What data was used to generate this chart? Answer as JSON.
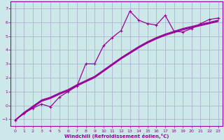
{
  "background_color": "#cce8e8",
  "grid_color": "#aaaacc",
  "line_color": "#990099",
  "xlabel": "Windchill (Refroidissement éolien,°C)",
  "xlim": [
    -0.5,
    23.5
  ],
  "ylim": [
    -1.5,
    7.5
  ],
  "yticks": [
    -1,
    0,
    1,
    2,
    3,
    4,
    5,
    6,
    7
  ],
  "xticks": [
    0,
    1,
    2,
    3,
    4,
    5,
    6,
    7,
    8,
    9,
    10,
    11,
    12,
    13,
    14,
    15,
    16,
    17,
    18,
    19,
    20,
    21,
    22,
    23
  ],
  "data_line": {
    "x": [
      0,
      1,
      2,
      3,
      4,
      5,
      6,
      7,
      8,
      9,
      10,
      11,
      12,
      13,
      14,
      15,
      16,
      17,
      18,
      19,
      20,
      21,
      22,
      23
    ],
    "y": [
      -1.1,
      -0.55,
      -0.2,
      0.1,
      -0.1,
      0.6,
      1.0,
      1.4,
      3.0,
      3.0,
      4.3,
      4.9,
      5.4,
      6.8,
      6.15,
      5.9,
      5.8,
      6.5,
      5.35,
      5.3,
      5.55,
      5.9,
      6.2,
      6.3
    ]
  },
  "smooth_lines": [
    [
      -1.05,
      -0.55,
      -0.1,
      0.35,
      0.55,
      0.85,
      1.1,
      1.45,
      1.75,
      2.05,
      2.5,
      2.95,
      3.4,
      3.8,
      4.2,
      4.55,
      4.85,
      5.1,
      5.3,
      5.5,
      5.65,
      5.8,
      5.95,
      6.1
    ],
    [
      -1.05,
      -0.6,
      -0.15,
      0.3,
      0.5,
      0.8,
      1.05,
      1.4,
      1.7,
      2.0,
      2.45,
      2.9,
      3.35,
      3.75,
      4.15,
      4.5,
      4.8,
      5.05,
      5.25,
      5.45,
      5.6,
      5.75,
      5.9,
      6.05
    ],
    [
      -1.05,
      -0.5,
      -0.05,
      0.4,
      0.6,
      0.9,
      1.15,
      1.5,
      1.8,
      2.1,
      2.55,
      3.0,
      3.45,
      3.85,
      4.25,
      4.6,
      4.9,
      5.15,
      5.35,
      5.55,
      5.7,
      5.85,
      6.0,
      6.15
    ]
  ]
}
